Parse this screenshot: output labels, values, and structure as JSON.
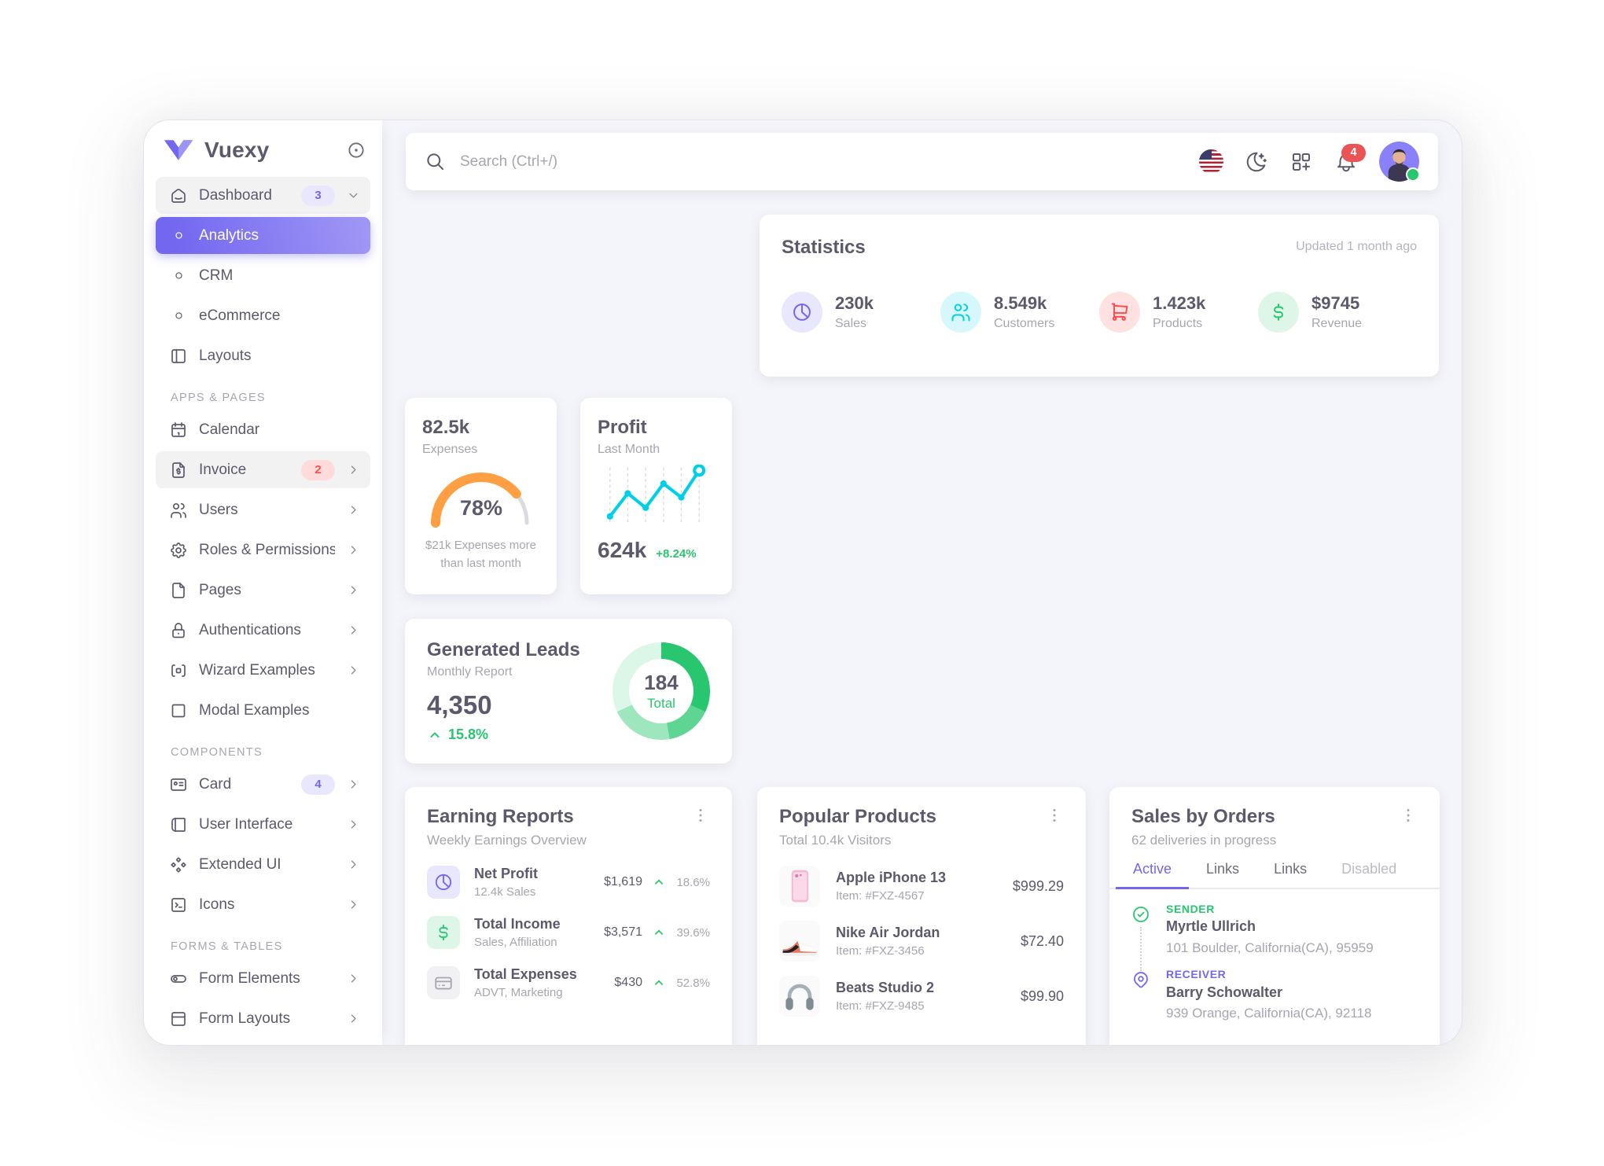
{
  "sidebar": {
    "brand": "Vuexy",
    "items": [
      {
        "label": "Dashboard",
        "icon": "home-icon",
        "badge": "3",
        "badge_color": "purple",
        "chevron": "down",
        "state": "hover"
      },
      {
        "label": "Analytics",
        "icon": "circle-icon",
        "state": "active"
      },
      {
        "label": "CRM",
        "icon": "circle-icon"
      },
      {
        "label": "eCommerce",
        "icon": "circle-icon"
      },
      {
        "label": "Layouts",
        "icon": "layout-sidebar-icon"
      },
      {
        "section": "APPS & PAGES"
      },
      {
        "label": "Calendar",
        "icon": "calendar-icon"
      },
      {
        "label": "Invoice",
        "icon": "file-dollar-icon",
        "badge": "2",
        "badge_color": "red",
        "chevron": "right",
        "state": "hover"
      },
      {
        "label": "Users",
        "icon": "users-icon",
        "chevron": "right"
      },
      {
        "label": "Roles & Permissions",
        "icon": "gear-icon",
        "chevron": "right"
      },
      {
        "label": "Pages",
        "icon": "file-icon",
        "chevron": "right"
      },
      {
        "label": "Authentications",
        "icon": "lock-icon",
        "chevron": "right"
      },
      {
        "label": "Wizard Examples",
        "icon": "wizard-icon",
        "chevron": "right"
      },
      {
        "label": "Modal Examples",
        "icon": "square-icon"
      },
      {
        "section": "COMPONENTS"
      },
      {
        "label": "Card",
        "icon": "id-card-icon",
        "badge": "4",
        "badge_color": "purple",
        "chevron": "right"
      },
      {
        "label": "User Interface",
        "icon": "book-icon",
        "chevron": "right"
      },
      {
        "label": "Extended UI",
        "icon": "diamonds-icon",
        "chevron": "right"
      },
      {
        "label": "Icons",
        "icon": "terminal-icon",
        "chevron": "right"
      },
      {
        "section": "FORMS & TABLES"
      },
      {
        "label": "Form Elements",
        "icon": "toggle-icon",
        "chevron": "right"
      },
      {
        "label": "Form Layouts",
        "icon": "form-layout-icon",
        "chevron": "right"
      }
    ]
  },
  "header": {
    "search_placeholder": "Search (Ctrl+/)",
    "notification_count": "4"
  },
  "statistics": {
    "title": "Statistics",
    "updated": "Updated 1 month ago",
    "stats": [
      {
        "value": "230k",
        "label": "Sales",
        "icon": "pie-chart-icon",
        "color": "purple"
      },
      {
        "value": "8.549k",
        "label": "Customers",
        "icon": "users-icon",
        "color": "cyan"
      },
      {
        "value": "1.423k",
        "label": "Products",
        "icon": "cart-icon",
        "color": "red"
      },
      {
        "value": "$9745",
        "label": "Revenue",
        "icon": "dollar-icon",
        "color": "green"
      }
    ]
  },
  "expenses": {
    "value": "82.5k",
    "label": "Expenses",
    "percent_label": "78%",
    "caption_line1": "$21k Expenses more",
    "caption_line2": "than last month",
    "chart_data": {
      "type": "gauge",
      "percent": 78,
      "color": "#ff9f43",
      "track_color": "#dbdade"
    }
  },
  "profit": {
    "title": "Profit",
    "subtitle": "Last Month",
    "value": "624k",
    "change": "+8.24%",
    "chart_data": {
      "type": "line",
      "color": "#00cfe8",
      "x_pct": [
        3,
        21,
        39,
        57,
        75,
        93
      ],
      "y_pct": [
        15,
        55,
        30,
        72,
        48,
        95
      ]
    }
  },
  "leads": {
    "title": "Generated Leads",
    "subtitle": "Monthly Report",
    "value": "4,350",
    "change": "15.8%",
    "donut": {
      "center_value": "184",
      "center_label": "Total",
      "color": "#28c76f",
      "segments": [
        {
          "deg": 115,
          "alpha": 1
        },
        {
          "deg": 55,
          "alpha": 0.75
        },
        {
          "deg": 75,
          "alpha": 0.45
        },
        {
          "deg": 115,
          "alpha": 0.16
        }
      ]
    }
  },
  "earning": {
    "title": "Earning Reports",
    "subtitle": "Weekly Earnings Overview",
    "rows": [
      {
        "name": "Net Profit",
        "detail": "12.4k Sales",
        "value": "$1,619",
        "change": "18.6%",
        "icon": "pie-chart-icon",
        "color": "purple"
      },
      {
        "name": "Total Income",
        "detail": "Sales, Affiliation",
        "value": "$3,571",
        "change": "39.6%",
        "icon": "dollar-icon",
        "color": "green"
      },
      {
        "name": "Total Expenses",
        "detail": "ADVT, Marketing",
        "value": "$430",
        "change": "52.8%",
        "icon": "credit-card-icon",
        "color": "gray"
      }
    ]
  },
  "products": {
    "title": "Popular Products",
    "subtitle": "Total 10.4k Visitors",
    "rows": [
      {
        "name": "Apple iPhone 13",
        "item": "Item: #FXZ-4567",
        "price": "$999.29",
        "image": "iphone"
      },
      {
        "name": "Nike Air Jordan",
        "item": "Item: #FXZ-3456",
        "price": "$72.40",
        "image": "sneaker"
      },
      {
        "name": "Beats Studio 2",
        "item": "Item: #FXZ-9485",
        "price": "$99.90",
        "image": "headphones"
      }
    ]
  },
  "orders": {
    "title": "Sales by Orders",
    "subtitle": "62 deliveries in progress",
    "tabs": [
      {
        "label": "Active",
        "state": "active"
      },
      {
        "label": "Links",
        "state": "normal"
      },
      {
        "label": "Links",
        "state": "normal"
      },
      {
        "label": "Disabled",
        "state": "disabled"
      }
    ],
    "sender": {
      "role": "SENDER",
      "name": "Myrtle Ullrich",
      "address": "101 Boulder, California(CA), 95959"
    },
    "receiver": {
      "role": "RECEIVER",
      "name": "Barry Schowalter",
      "address": "939 Orange, California(CA), 92118"
    }
  },
  "colors": {
    "primary": "#7367f0",
    "success": "#28c76f",
    "danger": "#ea5455",
    "warning": "#ff9f43",
    "info": "#00cfe8",
    "heading_text": "#5d596c",
    "muted_text": "#a8a5b1",
    "body_bg": "#f4f5fa"
  }
}
